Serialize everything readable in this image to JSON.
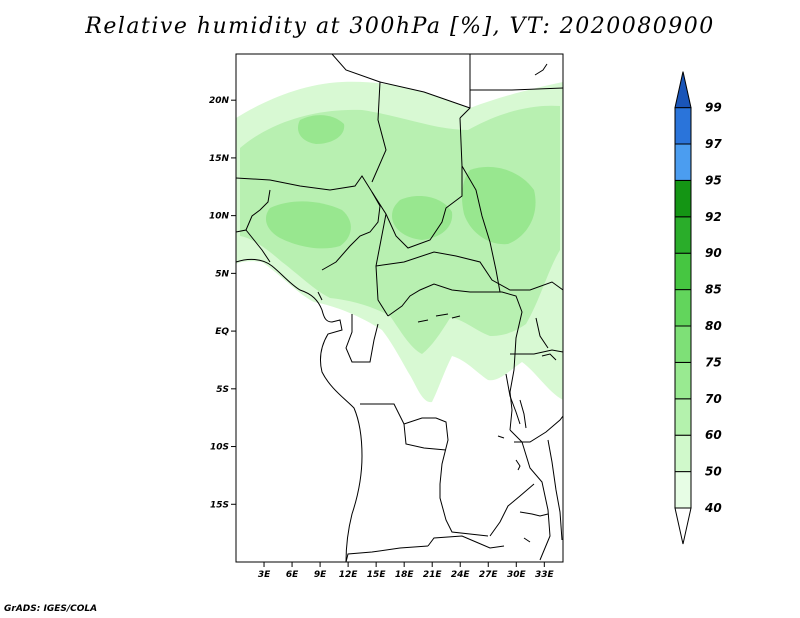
{
  "title": "Relative humidity at 300hPa [%], VT: 2020080900",
  "credit": "GrADS: IGES/COLA",
  "map": {
    "lon_range": [
      0,
      35
    ],
    "lat_range": [
      -20,
      24
    ],
    "lat_ticks": [
      {
        "value": 20,
        "label": "20N"
      },
      {
        "value": 15,
        "label": "15N"
      },
      {
        "value": 10,
        "label": "10N"
      },
      {
        "value": 5,
        "label": "5N"
      },
      {
        "value": 0,
        "label": "EQ"
      },
      {
        "value": -5,
        "label": "5S"
      },
      {
        "value": -10,
        "label": "10S"
      },
      {
        "value": -15,
        "label": "15S"
      }
    ],
    "lon_ticks": [
      {
        "value": 3,
        "label": "3E"
      },
      {
        "value": 6,
        "label": "6E"
      },
      {
        "value": 9,
        "label": "9E"
      },
      {
        "value": 12,
        "label": "12E"
      },
      {
        "value": 15,
        "label": "15E"
      },
      {
        "value": 18,
        "label": "18E"
      },
      {
        "value": 21,
        "label": "21E"
      },
      {
        "value": 24,
        "label": "24E"
      },
      {
        "value": 27,
        "label": "27E"
      },
      {
        "value": 30,
        "label": "30E"
      },
      {
        "value": 33,
        "label": "33E"
      }
    ]
  },
  "colorbar": {
    "levels": [
      "40",
      "50",
      "60",
      "70",
      "75",
      "80",
      "85",
      "90",
      "92",
      "95",
      "97",
      "99"
    ],
    "colors": [
      "#ffffff",
      "#e7fde5",
      "#d0f9cb",
      "#b4f2ad",
      "#99ea91",
      "#7ee077",
      "#62d55c",
      "#46c641",
      "#2aad2a",
      "#149514",
      "#4b9df0",
      "#2a74da",
      "#1a55b8"
    ]
  },
  "fill_colors": {
    "light": "#d8f9d3",
    "medium": "#b8f0b1",
    "dark": "#98e78f"
  }
}
